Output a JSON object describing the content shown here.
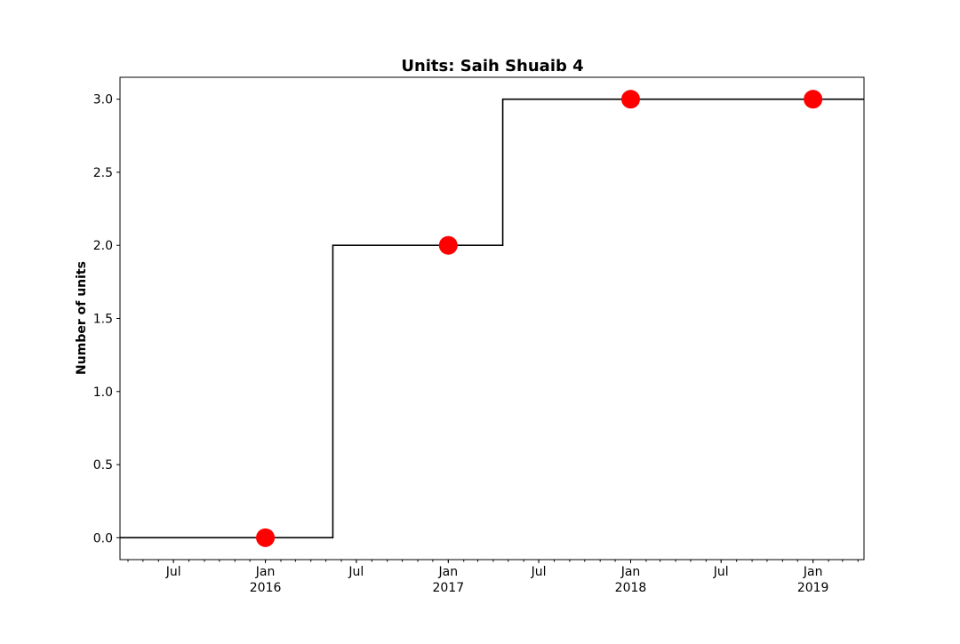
{
  "chart_data": {
    "type": "line",
    "title": "Units: Saih Shuaib 4",
    "xlabel": "",
    "ylabel": "Number of units",
    "ylim": [
      -0.15,
      3.15
    ],
    "xlim": [
      "2015-03-16",
      "2019-04-13"
    ],
    "yticks": [
      "0.0",
      "0.5",
      "1.0",
      "1.5",
      "2.0",
      "2.5",
      "3.0"
    ],
    "xticks": [
      {
        "date": "2015-07-01",
        "label": "Jul",
        "sublabel": ""
      },
      {
        "date": "2016-01-01",
        "label": "Jan",
        "sublabel": "2016"
      },
      {
        "date": "2016-07-01",
        "label": "Jul",
        "sublabel": ""
      },
      {
        "date": "2017-01-01",
        "label": "Jan",
        "sublabel": "2017"
      },
      {
        "date": "2017-07-01",
        "label": "Jul",
        "sublabel": ""
      },
      {
        "date": "2018-01-01",
        "label": "Jan",
        "sublabel": "2018"
      },
      {
        "date": "2018-07-01",
        "label": "Jul",
        "sublabel": ""
      },
      {
        "date": "2019-01-01",
        "label": "Jan",
        "sublabel": "2019"
      }
    ],
    "step_series": {
      "color": "#000000",
      "points": [
        {
          "x": "2015-03-16",
          "y": 0
        },
        {
          "x": "2016-05-15",
          "y": 2
        },
        {
          "x": "2017-04-20",
          "y": 3
        },
        {
          "x": "2019-04-13",
          "y": 3
        }
      ]
    },
    "markers": {
      "color": "#ff0000",
      "points": [
        {
          "x": "2016-01-01",
          "y": 0
        },
        {
          "x": "2017-01-01",
          "y": 2
        },
        {
          "x": "2018-01-01",
          "y": 3
        },
        {
          "x": "2019-01-01",
          "y": 3
        }
      ]
    },
    "grid": false,
    "legend": "none"
  }
}
